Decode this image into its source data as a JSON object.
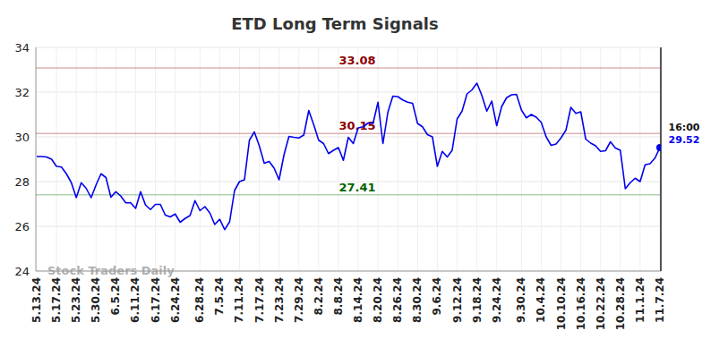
{
  "chart_data": {
    "type": "line",
    "title": "ETD Long Term Signals",
    "watermark": "Stock Traders Daily",
    "last_time": "16:00",
    "color": "#0000ee",
    "grid": true,
    "ylim": [
      24,
      34
    ],
    "yticks": [
      24,
      26,
      28,
      30,
      32,
      34
    ],
    "levels": [
      {
        "value": 33.08,
        "color": "#8b0000"
      },
      {
        "value": 30.15,
        "color": "#8b0000"
      },
      {
        "value": 27.41,
        "color": "#006400"
      }
    ],
    "categories": [
      "5.13.24",
      null,
      null,
      null,
      "5.17.24",
      null,
      null,
      null,
      "5.23.24",
      null,
      null,
      null,
      "5.30.24",
      null,
      null,
      null,
      "6.5.24",
      null,
      null,
      null,
      "6.11.24",
      null,
      null,
      null,
      "6.17.24",
      null,
      null,
      null,
      "6.24.24",
      null,
      null,
      null,
      null,
      "6.28.24",
      null,
      null,
      null,
      "7.5.24",
      null,
      null,
      null,
      "7.11.24",
      null,
      null,
      null,
      "7.17.24",
      null,
      null,
      null,
      "7.23.24",
      null,
      null,
      null,
      "7.29.24",
      null,
      null,
      null,
      "8.2.24",
      null,
      null,
      null,
      "8.8.24",
      null,
      null,
      null,
      "8.14.24",
      null,
      null,
      null,
      "8.20.24",
      null,
      null,
      null,
      "8.26.24",
      null,
      null,
      null,
      "8.30.24",
      null,
      null,
      null,
      "9.6.24",
      null,
      null,
      null,
      "9.12.24",
      null,
      null,
      null,
      "9.18.24",
      null,
      null,
      null,
      "9.24.24",
      null,
      null,
      null,
      null,
      "9.30.24",
      null,
      null,
      null,
      "10.4.24",
      null,
      null,
      null,
      "10.10.24",
      null,
      null,
      null,
      "10.16.24",
      null,
      null,
      null,
      "10.22.24",
      null,
      null,
      null,
      "10.28.24",
      null,
      null,
      null,
      "11.1.24",
      null,
      null,
      null,
      "11.7.24"
    ],
    "values": [
      29.12,
      29.12,
      29.1,
      29.0,
      28.68,
      28.65,
      28.35,
      27.95,
      27.28,
      27.95,
      27.7,
      27.28,
      27.85,
      28.35,
      28.18,
      27.3,
      27.55,
      27.35,
      27.05,
      27.05,
      26.8,
      27.55,
      26.95,
      26.75,
      26.98,
      26.98,
      26.5,
      26.42,
      26.55,
      26.18,
      26.35,
      26.48,
      27.15,
      26.7,
      26.88,
      26.6,
      26.08,
      26.32,
      25.85,
      26.2,
      27.6,
      28.0,
      28.08,
      29.85,
      30.22,
      29.6,
      28.82,
      28.9,
      28.6,
      28.08,
      29.2,
      30.02,
      29.98,
      29.95,
      30.08,
      31.18,
      30.55,
      29.85,
      29.7,
      29.25,
      29.4,
      29.52,
      28.95,
      29.98,
      29.7,
      30.4,
      30.45,
      30.62,
      30.6,
      31.55,
      29.7,
      31.1,
      31.82,
      31.8,
      31.65,
      31.55,
      31.5,
      30.6,
      30.45,
      30.1,
      30.0,
      28.68,
      29.35,
      29.1,
      29.4,
      30.8,
      31.15,
      31.92,
      32.1,
      32.4,
      31.85,
      31.15,
      31.6,
      30.5,
      31.35,
      31.75,
      31.88,
      31.9,
      31.2,
      30.85,
      31.0,
      30.88,
      30.65,
      30.0,
      29.62,
      29.68,
      29.95,
      30.3,
      31.32,
      31.05,
      31.12,
      29.9,
      29.72,
      29.6,
      29.35,
      29.38,
      29.78,
      29.5,
      29.4,
      27.68,
      27.95,
      28.15,
      28.0,
      28.75,
      28.8,
      29.05,
      29.52
    ]
  }
}
